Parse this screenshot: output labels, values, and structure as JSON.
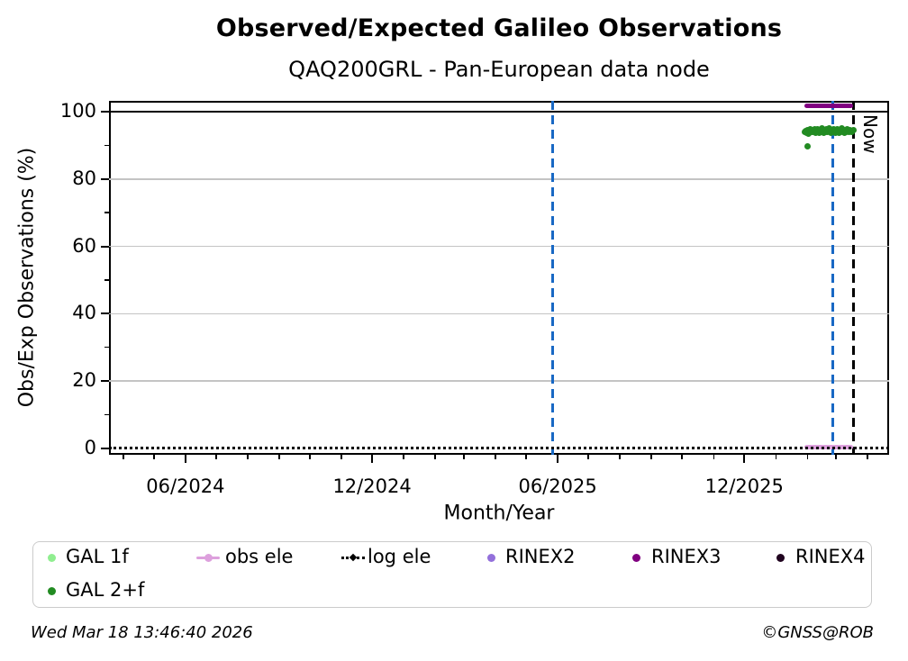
{
  "header": {
    "title": "Observed/Expected Galileo Observations",
    "subtitle": "QAQ200GRL - Pan-European data node"
  },
  "chart_data": {
    "type": "scatter",
    "title": "Observed/Expected Galileo Observations",
    "subtitle": "QAQ200GRL - Pan-European data node",
    "xlabel": "Month/Year",
    "ylabel": "Obs/Exp Observations (%)",
    "x_domain": [
      "2024-03-18",
      "2026-04-22"
    ],
    "ylim": [
      -1.9,
      103.2
    ],
    "grid": "horizontal-only",
    "yticks": [
      0,
      20,
      40,
      60,
      80,
      100
    ],
    "yminorticks": [
      10,
      30,
      50,
      70,
      90
    ],
    "xticks": [
      {
        "label": "06/2024",
        "date": "2024-06-01"
      },
      {
        "label": "12/2024",
        "date": "2024-12-01"
      },
      {
        "label": "06/2025",
        "date": "2025-06-01"
      },
      {
        "label": "12/2025",
        "date": "2025-12-01"
      }
    ],
    "reference_line": {
      "value": 100,
      "color": "#000000"
    },
    "vlines": [
      {
        "date": "2025-05-27",
        "color": "#1868c4",
        "style": "dashed"
      },
      {
        "date": "2026-02-26",
        "color": "#1868c4",
        "style": "dashed"
      }
    ],
    "now_marker": {
      "date": "2026-03-18",
      "label": "Now",
      "color": "#000000",
      "style": "dashed"
    },
    "series": [
      {
        "name": "GAL 1f",
        "color": "#90EE90",
        "type": "scatter",
        "points": []
      },
      {
        "name": "GAL 2+f",
        "color": "#228B22",
        "type": "scatter",
        "period": [
          "2026-01-29",
          "2026-03-18"
        ],
        "points": [
          [
            0.0,
            94.0
          ],
          [
            0.02,
            94.3
          ],
          [
            0.04,
            93.7
          ],
          [
            0.055,
            94.6
          ],
          [
            0.07,
            94.1
          ],
          [
            0.09,
            93.5
          ],
          [
            0.11,
            94.8
          ],
          [
            0.13,
            94.2
          ],
          [
            0.15,
            93.9
          ],
          [
            0.17,
            94.5
          ],
          [
            0.19,
            94.0
          ],
          [
            0.21,
            94.7
          ],
          [
            0.23,
            93.6
          ],
          [
            0.25,
            94.3
          ],
          [
            0.27,
            94.9
          ],
          [
            0.29,
            94.1
          ],
          [
            0.31,
            93.8
          ],
          [
            0.33,
            94.4
          ],
          [
            0.35,
            95.0
          ],
          [
            0.37,
            94.2
          ],
          [
            0.39,
            93.7
          ],
          [
            0.41,
            94.6
          ],
          [
            0.43,
            94.0
          ],
          [
            0.45,
            94.8
          ],
          [
            0.47,
            93.9
          ],
          [
            0.49,
            94.3
          ],
          [
            0.51,
            95.1
          ],
          [
            0.53,
            94.5
          ],
          [
            0.55,
            93.8
          ],
          [
            0.57,
            94.1
          ],
          [
            0.59,
            94.7
          ],
          [
            0.61,
            94.0
          ],
          [
            0.63,
            93.6
          ],
          [
            0.65,
            94.4
          ],
          [
            0.67,
            94.9
          ],
          [
            0.69,
            94.2
          ],
          [
            0.71,
            93.8
          ],
          [
            0.73,
            94.6
          ],
          [
            0.75,
            94.1
          ],
          [
            0.77,
            95.0
          ],
          [
            0.79,
            94.3
          ],
          [
            0.81,
            93.7
          ],
          [
            0.83,
            94.5
          ],
          [
            0.85,
            94.0
          ],
          [
            0.87,
            94.8
          ],
          [
            0.89,
            94.2
          ],
          [
            0.91,
            93.9
          ],
          [
            0.93,
            94.6
          ],
          [
            0.95,
            94.3
          ],
          [
            0.97,
            94.0
          ],
          [
            1.0,
            94.4
          ]
        ],
        "outliers": [
          [
            0.07,
            89.8
          ]
        ]
      },
      {
        "name": "obs ele",
        "color": "#DDA0DD",
        "type": "line",
        "period": [
          "2026-01-29",
          "2026-03-18"
        ],
        "value": 0.5
      },
      {
        "name": "log ele",
        "color": "#000000",
        "type": "dotted-line",
        "period": [
          "2024-03-18",
          "2026-04-22"
        ],
        "value": 0
      },
      {
        "name": "RINEX2",
        "color": "#9370DB",
        "type": "scatter",
        "points": []
      },
      {
        "name": "RINEX3",
        "color": "#800080",
        "type": "line",
        "period": [
          "2026-01-29",
          "2026-03-18"
        ],
        "value": 101.6
      },
      {
        "name": "RINEX4",
        "color": "#20041f",
        "type": "scatter",
        "points": []
      }
    ]
  },
  "legend": {
    "items": [
      {
        "label": "GAL 1f",
        "marker": "dot",
        "color": "#90EE90"
      },
      {
        "label": "obs ele",
        "marker": "line-dot",
        "color": "#DDA0DD"
      },
      {
        "label": "log ele",
        "marker": "dotted",
        "color": "#000000"
      },
      {
        "label": "RINEX2",
        "marker": "dot",
        "color": "#9370DB"
      },
      {
        "label": "RINEX3",
        "marker": "dot",
        "color": "#800080"
      },
      {
        "label": "RINEX4",
        "marker": "dot",
        "color": "#20041f"
      },
      {
        "label": "GAL 2+f",
        "marker": "dot",
        "color": "#228B22"
      }
    ]
  },
  "footer": {
    "timestamp": "Wed Mar 18 13:46:40 2026",
    "copyright": "©GNSS@ROB"
  },
  "colors": {
    "vline_blue": "#1868c4",
    "grid_gray": "#c4c4c4",
    "axis_black": "#000000"
  }
}
